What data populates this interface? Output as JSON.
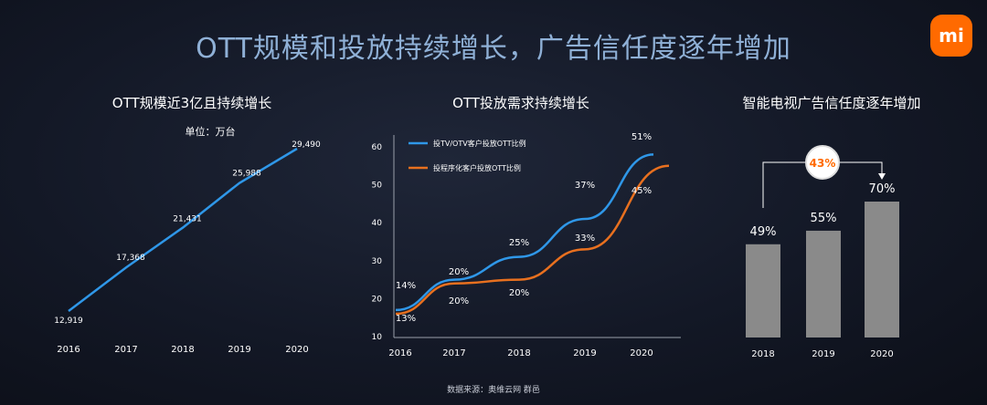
{
  "page": {
    "title": "OTT规模和投放持续增长，广告信任度逐年增加",
    "logo": "mi",
    "source": "数据来源：奥维云网  群邑"
  },
  "colors": {
    "blue": "#2f97e8",
    "orange": "#e8701f",
    "bar": "#8a8a8a",
    "accent": "#ff6a00"
  },
  "chart_data": [
    {
      "type": "line",
      "title": "OTT规模近3亿且持续增长",
      "unit": "单位：万台",
      "x": [
        "2016",
        "2017",
        "2018",
        "2019",
        "2020"
      ],
      "series": [
        {
          "values": [
            12919,
            17368,
            21431,
            25988,
            29490
          ],
          "labels": [
            "12,919",
            "17,368",
            "21,431",
            "25,988",
            "29,490"
          ]
        }
      ]
    },
    {
      "type": "line",
      "title": "OTT投放需求持续增长",
      "yticks": [
        "60",
        "50",
        "40",
        "30",
        "20",
        "10"
      ],
      "ylim": [
        10,
        60
      ],
      "x": [
        "2016",
        "2017",
        "2018",
        "2019",
        "2020"
      ],
      "series": [
        {
          "name": "投TV/OTV客户投放OTT比例",
          "color": "blue",
          "values": [
            14,
            20,
            25,
            37,
            51
          ],
          "labels": [
            "14%",
            "20%",
            "25%",
            "37%",
            "51%"
          ]
        },
        {
          "name": "投程序化客户投放OTT比例",
          "color": "orange",
          "values": [
            13,
            20,
            20,
            33,
            45
          ],
          "labels": [
            "13%",
            "20%",
            "20%",
            "33%",
            "45%"
          ]
        }
      ]
    },
    {
      "type": "bar",
      "title": "智能电视广告信任度逐年增加",
      "categories": [
        "2018",
        "2019",
        "2020"
      ],
      "values": [
        49,
        55,
        70
      ],
      "labels": [
        "49%",
        "55%",
        "70%"
      ],
      "annotation": "43%"
    }
  ]
}
